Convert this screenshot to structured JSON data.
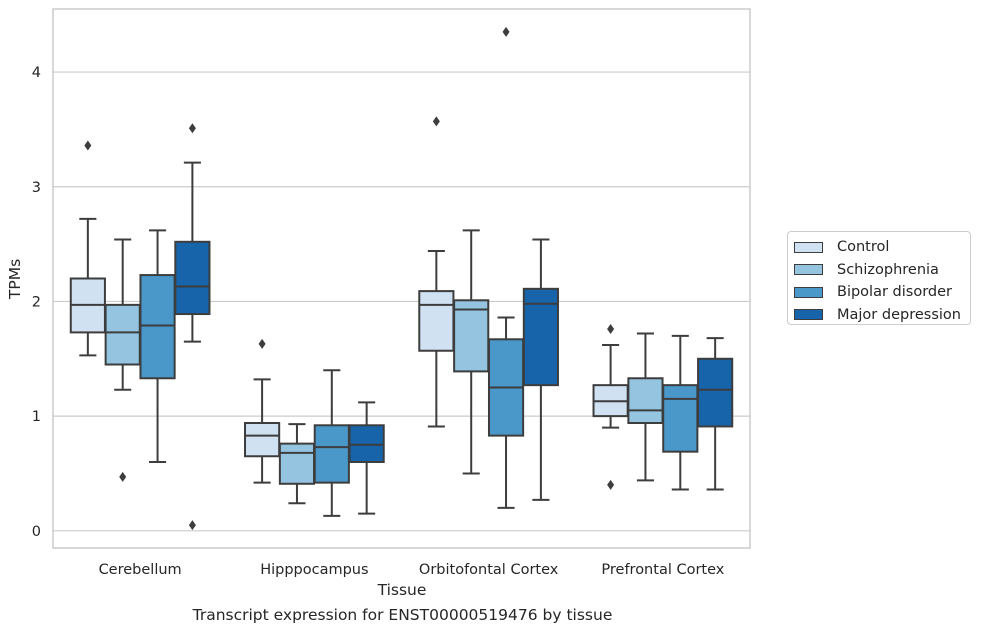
{
  "caption": "Transcript expression for ENST00000519476 by tissue",
  "legend": {
    "items": [
      {
        "label": "Control",
        "color": "#d0e1f2"
      },
      {
        "label": "Schizophrenia",
        "color": "#94c4df"
      },
      {
        "label": "Bipolar disorder",
        "color": "#4a98c9"
      },
      {
        "label": "Major depression",
        "color": "#1764ab"
      }
    ]
  },
  "chart_data": {
    "type": "box",
    "xlabel": "Tissue",
    "ylabel": "TPMs",
    "ylim": [
      -0.15,
      4.55
    ],
    "yticks": [
      0,
      1,
      2,
      3,
      4
    ],
    "grid": "horizontal",
    "legend_position": "right",
    "categories": [
      "Cerebellum",
      "Hipppocampus",
      "Orbitofontal Cortex",
      "Prefrontal Cortex"
    ],
    "series": [
      {
        "name": "Control",
        "color": "#d0e1f2",
        "boxes": [
          {
            "whislo": 1.53,
            "q1": 1.73,
            "med": 1.97,
            "q3": 2.2,
            "whishi": 2.72,
            "fliers": [
              3.36
            ]
          },
          {
            "whislo": 0.42,
            "q1": 0.65,
            "med": 0.83,
            "q3": 0.94,
            "whishi": 1.32,
            "fliers": [
              1.63
            ]
          },
          {
            "whislo": 0.91,
            "q1": 1.57,
            "med": 1.97,
            "q3": 2.09,
            "whishi": 2.44,
            "fliers": [
              3.57
            ]
          },
          {
            "whislo": 0.9,
            "q1": 1.0,
            "med": 1.13,
            "q3": 1.27,
            "whishi": 1.62,
            "fliers": [
              0.4,
              1.76
            ]
          }
        ]
      },
      {
        "name": "Schizophrenia",
        "color": "#94c4df",
        "boxes": [
          {
            "whislo": 1.23,
            "q1": 1.45,
            "med": 1.73,
            "q3": 1.97,
            "whishi": 2.54,
            "fliers": [
              0.47
            ]
          },
          {
            "whislo": 0.24,
            "q1": 0.41,
            "med": 0.68,
            "q3": 0.76,
            "whishi": 0.93,
            "fliers": []
          },
          {
            "whislo": 0.5,
            "q1": 1.39,
            "med": 1.93,
            "q3": 2.01,
            "whishi": 2.62,
            "fliers": []
          },
          {
            "whislo": 0.44,
            "q1": 0.94,
            "med": 1.05,
            "q3": 1.33,
            "whishi": 1.72,
            "fliers": []
          }
        ]
      },
      {
        "name": "Bipolar disorder",
        "color": "#4a98c9",
        "boxes": [
          {
            "whislo": 0.6,
            "q1": 1.33,
            "med": 1.79,
            "q3": 2.23,
            "whishi": 2.62,
            "fliers": []
          },
          {
            "whislo": 0.13,
            "q1": 0.42,
            "med": 0.73,
            "q3": 0.92,
            "whishi": 1.4,
            "fliers": []
          },
          {
            "whislo": 0.2,
            "q1": 0.83,
            "med": 1.25,
            "q3": 1.67,
            "whishi": 1.86,
            "fliers": [
              4.35
            ]
          },
          {
            "whislo": 0.36,
            "q1": 0.69,
            "med": 1.15,
            "q3": 1.27,
            "whishi": 1.7,
            "fliers": []
          }
        ]
      },
      {
        "name": "Major depression",
        "color": "#1764ab",
        "boxes": [
          {
            "whislo": 1.65,
            "q1": 1.89,
            "med": 2.13,
            "q3": 2.52,
            "whishi": 3.21,
            "fliers": [
              3.51,
              0.05
            ]
          },
          {
            "whislo": 0.15,
            "q1": 0.6,
            "med": 0.75,
            "q3": 0.92,
            "whishi": 1.12,
            "fliers": []
          },
          {
            "whislo": 0.27,
            "q1": 1.27,
            "med": 1.98,
            "q3": 2.11,
            "whishi": 2.54,
            "fliers": []
          },
          {
            "whislo": 0.36,
            "q1": 0.91,
            "med": 1.23,
            "q3": 1.5,
            "whishi": 1.68,
            "fliers": []
          }
        ]
      }
    ]
  }
}
